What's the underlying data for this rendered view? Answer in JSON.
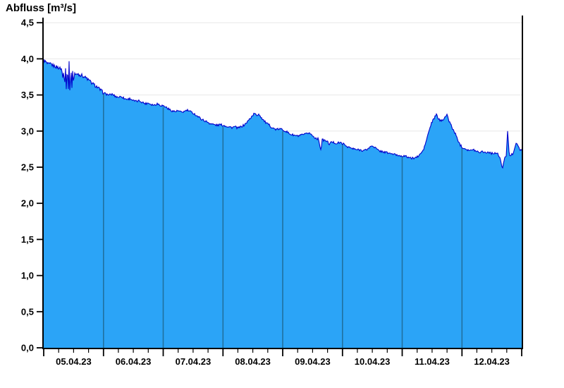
{
  "chart_data": {
    "type": "area",
    "title": "Abfluss [m³/s]",
    "series_name": "Abfluss",
    "unit": "m³/s",
    "ylim": [
      0,
      4.5
    ],
    "xlim_days": [
      0,
      8
    ],
    "grid": "horizontal-only",
    "legend": "none",
    "y_ticks": [
      {
        "v": 0.0,
        "label": "0,0"
      },
      {
        "v": 0.5,
        "label": "0,5"
      },
      {
        "v": 1.0,
        "label": "1,0"
      },
      {
        "v": 1.5,
        "label": "1,5"
      },
      {
        "v": 2.0,
        "label": "2,0"
      },
      {
        "v": 2.5,
        "label": "2,5"
      },
      {
        "v": 3.0,
        "label": "3,0"
      },
      {
        "v": 3.5,
        "label": "3,5"
      },
      {
        "v": 4.0,
        "label": "4,0"
      },
      {
        "v": 4.5,
        "label": "4,5"
      }
    ],
    "x_day_labels": [
      "05.04.23",
      "06.04.23",
      "07.04.23",
      "08.04.23",
      "09.04.23",
      "10.04.23",
      "11.04.23",
      "12.04.23"
    ],
    "x_minor_per_day": 4,
    "noise_amplitude": 0.015,
    "colors": {
      "fill": "#2BA4F7",
      "line": "#0000CC",
      "day_separator": "#20719F",
      "grid": "#E8E8E8",
      "axis": "#000000",
      "background": "#FFFFFF",
      "text": "#000000"
    },
    "points": [
      [
        0,
        3.98
      ],
      [
        0.03,
        3.96
      ],
      [
        0.06,
        3.93
      ],
      [
        0.09,
        3.92
      ],
      [
        0.12,
        3.93
      ],
      [
        0.15,
        3.91
      ],
      [
        0.18,
        3.9
      ],
      [
        0.21,
        3.89
      ],
      [
        0.24,
        3.88
      ],
      [
        0.27,
        3.87
      ],
      [
        0.3,
        3.86
      ],
      [
        0.32,
        3.73
      ],
      [
        0.335,
        3.87
      ],
      [
        0.35,
        3.62
      ],
      [
        0.365,
        3.88
      ],
      [
        0.38,
        3.55
      ],
      [
        0.395,
        3.93
      ],
      [
        0.41,
        3.52
      ],
      [
        0.425,
        3.95
      ],
      [
        0.44,
        3.48
      ],
      [
        0.455,
        3.9
      ],
      [
        0.47,
        3.58
      ],
      [
        0.485,
        3.85
      ],
      [
        0.5,
        3.65
      ],
      [
        0.515,
        3.82
      ],
      [
        0.53,
        3.77
      ],
      [
        0.56,
        3.8
      ],
      [
        0.6,
        3.78
      ],
      [
        0.64,
        3.77
      ],
      [
        0.68,
        3.75
      ],
      [
        0.72,
        3.73
      ],
      [
        0.76,
        3.7
      ],
      [
        0.8,
        3.67
      ],
      [
        0.84,
        3.64
      ],
      [
        0.88,
        3.62
      ],
      [
        0.92,
        3.59
      ],
      [
        0.96,
        3.56
      ],
      [
        1,
        3.53
      ],
      [
        1.05,
        3.51
      ],
      [
        1.1,
        3.5
      ],
      [
        1.15,
        3.51
      ],
      [
        1.2,
        3.48
      ],
      [
        1.25,
        3.47
      ],
      [
        1.3,
        3.48
      ],
      [
        1.35,
        3.45
      ],
      [
        1.4,
        3.44
      ],
      [
        1.45,
        3.45
      ],
      [
        1.5,
        3.42
      ],
      [
        1.55,
        3.41
      ],
      [
        1.6,
        3.42
      ],
      [
        1.65,
        3.4
      ],
      [
        1.7,
        3.38
      ],
      [
        1.75,
        3.39
      ],
      [
        1.8,
        3.37
      ],
      [
        1.85,
        3.36
      ],
      [
        1.9,
        3.38
      ],
      [
        1.95,
        3.36
      ],
      [
        2,
        3.35
      ],
      [
        2.05,
        3.33
      ],
      [
        2.1,
        3.3
      ],
      [
        2.15,
        3.28
      ],
      [
        2.2,
        3.27
      ],
      [
        2.25,
        3.28
      ],
      [
        2.3,
        3.26
      ],
      [
        2.35,
        3.27
      ],
      [
        2.4,
        3.29
      ],
      [
        2.45,
        3.27
      ],
      [
        2.5,
        3.25
      ],
      [
        2.55,
        3.22
      ],
      [
        2.6,
        3.19
      ],
      [
        2.65,
        3.16
      ],
      [
        2.7,
        3.14
      ],
      [
        2.75,
        3.12
      ],
      [
        2.8,
        3.1
      ],
      [
        2.85,
        3.09
      ],
      [
        2.9,
        3.08
      ],
      [
        2.95,
        3.09
      ],
      [
        3,
        3.08
      ],
      [
        3.05,
        3.07
      ],
      [
        3.1,
        3.06
      ],
      [
        3.15,
        3.05
      ],
      [
        3.2,
        3.06
      ],
      [
        3.25,
        3.04
      ],
      [
        3.3,
        3.06
      ],
      [
        3.35,
        3.08
      ],
      [
        3.4,
        3.12
      ],
      [
        3.45,
        3.17
      ],
      [
        3.5,
        3.22
      ],
      [
        3.53,
        3.25
      ],
      [
        3.56,
        3.21
      ],
      [
        3.6,
        3.24
      ],
      [
        3.63,
        3.2
      ],
      [
        3.66,
        3.17
      ],
      [
        3.7,
        3.13
      ],
      [
        3.74,
        3.1
      ],
      [
        3.78,
        3.08
      ],
      [
        3.82,
        3.05
      ],
      [
        3.86,
        3.03
      ],
      [
        3.9,
        3.02
      ],
      [
        3.95,
        3.03
      ],
      [
        4,
        3.02
      ],
      [
        4.05,
        3
      ],
      [
        4.1,
        2.97
      ],
      [
        4.15,
        2.95
      ],
      [
        4.2,
        2.94
      ],
      [
        4.25,
        2.93
      ],
      [
        4.3,
        2.94
      ],
      [
        4.35,
        2.95
      ],
      [
        4.4,
        2.96
      ],
      [
        4.44,
        2.98
      ],
      [
        4.48,
        2.95
      ],
      [
        4.52,
        2.92
      ],
      [
        4.56,
        2.9
      ],
      [
        4.6,
        2.89
      ],
      [
        4.64,
        2.73
      ],
      [
        4.66,
        2.88
      ],
      [
        4.7,
        2.87
      ],
      [
        4.74,
        2.86
      ],
      [
        4.78,
        2.82
      ],
      [
        4.82,
        2.85
      ],
      [
        4.86,
        2.84
      ],
      [
        4.9,
        2.83
      ],
      [
        4.95,
        2.84
      ],
      [
        5,
        2.83
      ],
      [
        5.05,
        2.8
      ],
      [
        5.1,
        2.78
      ],
      [
        5.15,
        2.76
      ],
      [
        5.2,
        2.75
      ],
      [
        5.25,
        2.74
      ],
      [
        5.3,
        2.74
      ],
      [
        5.35,
        2.73
      ],
      [
        5.4,
        2.74
      ],
      [
        5.45,
        2.77
      ],
      [
        5.5,
        2.8
      ],
      [
        5.55,
        2.77
      ],
      [
        5.6,
        2.73
      ],
      [
        5.65,
        2.72
      ],
      [
        5.7,
        2.71
      ],
      [
        5.75,
        2.7
      ],
      [
        5.8,
        2.69
      ],
      [
        5.85,
        2.68
      ],
      [
        5.9,
        2.67
      ],
      [
        5.95,
        2.66
      ],
      [
        6,
        2.66
      ],
      [
        6.05,
        2.65
      ],
      [
        6.1,
        2.64
      ],
      [
        6.15,
        2.62
      ],
      [
        6.2,
        2.63
      ],
      [
        6.25,
        2.64
      ],
      [
        6.28,
        2.66
      ],
      [
        6.32,
        2.7
      ],
      [
        6.35,
        2.73
      ],
      [
        6.38,
        2.8
      ],
      [
        6.4,
        2.86
      ],
      [
        6.44,
        2.98
      ],
      [
        6.49,
        3.11
      ],
      [
        6.53,
        3.17
      ],
      [
        6.57,
        3.23
      ],
      [
        6.6,
        3.18
      ],
      [
        6.64,
        3.14
      ],
      [
        6.68,
        3.16
      ],
      [
        6.72,
        3.2
      ],
      [
        6.75,
        3.22
      ],
      [
        6.78,
        3.15
      ],
      [
        6.82,
        3.08
      ],
      [
        6.85,
        3.02
      ],
      [
        6.88,
        2.98
      ],
      [
        6.91,
        2.92
      ],
      [
        6.94,
        2.86
      ],
      [
        6.97,
        2.81
      ],
      [
        7,
        2.78
      ],
      [
        7.05,
        2.76
      ],
      [
        7.1,
        2.74
      ],
      [
        7.15,
        2.73
      ],
      [
        7.2,
        2.74
      ],
      [
        7.25,
        2.72
      ],
      [
        7.3,
        2.71
      ],
      [
        7.35,
        2.72
      ],
      [
        7.4,
        2.7
      ],
      [
        7.45,
        2.71
      ],
      [
        7.5,
        2.69
      ],
      [
        7.55,
        2.7
      ],
      [
        7.6,
        2.68
      ],
      [
        7.64,
        2.62
      ],
      [
        7.68,
        2.47
      ],
      [
        7.71,
        2.63
      ],
      [
        7.74,
        2.66
      ],
      [
        7.765,
        3.02
      ],
      [
        7.79,
        2.67
      ],
      [
        7.82,
        2.66
      ],
      [
        7.86,
        2.7
      ],
      [
        7.9,
        2.83
      ],
      [
        7.93,
        2.8
      ],
      [
        7.97,
        2.75
      ],
      [
        8,
        2.73
      ]
    ]
  }
}
